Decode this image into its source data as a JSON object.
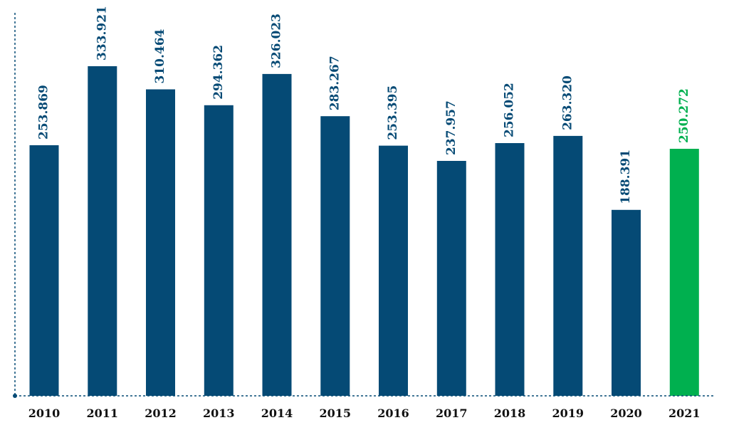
{
  "chart_data": {
    "type": "bar",
    "categories": [
      "2010",
      "2011",
      "2012",
      "2013",
      "2014",
      "2015",
      "2016",
      "2017",
      "2018",
      "2019",
      "2020",
      "2021"
    ],
    "values": [
      253.869,
      333.921,
      310.464,
      294.362,
      326.023,
      283.267,
      253.395,
      237.957,
      256.052,
      263.32,
      188.391,
      250.272
    ],
    "value_labels": [
      "253.869",
      "333.921",
      "310.464",
      "294.362",
      "326.023",
      "283.267",
      "253.395",
      "237.957",
      "256.052",
      "263.320",
      "188.391",
      "250.272"
    ],
    "ylim": [
      0,
      388
    ],
    "grid": false,
    "legend": "none",
    "colors": {
      "bar": "#054a75",
      "highlight_bar": "#00b04f",
      "highlight_label": "#00b04f",
      "label": "#054a75",
      "axis": "#054a75"
    },
    "highlight_index": 11
  }
}
